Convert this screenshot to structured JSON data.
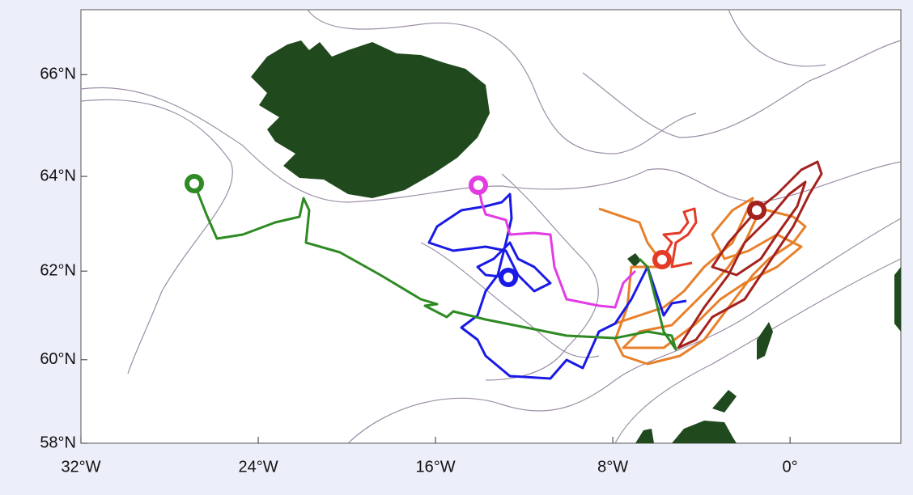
{
  "map": {
    "projection": "mercator",
    "xlim": [
      -32,
      5
    ],
    "ylim": [
      58,
      67.2
    ],
    "xticks": [
      {
        "value": -32,
        "label": "32°W"
      },
      {
        "value": -24,
        "label": "24°W"
      },
      {
        "value": -16,
        "label": "16°W"
      },
      {
        "value": -8,
        "label": "8°W"
      },
      {
        "value": 0,
        "label": "0°"
      }
    ],
    "yticks": [
      {
        "value": 58,
        "label": "58°N"
      },
      {
        "value": 60,
        "label": "60°N"
      },
      {
        "value": 62,
        "label": "62°N"
      },
      {
        "value": 64,
        "label": "64°N"
      },
      {
        "value": 66,
        "label": "66°N"
      }
    ]
  }
}
